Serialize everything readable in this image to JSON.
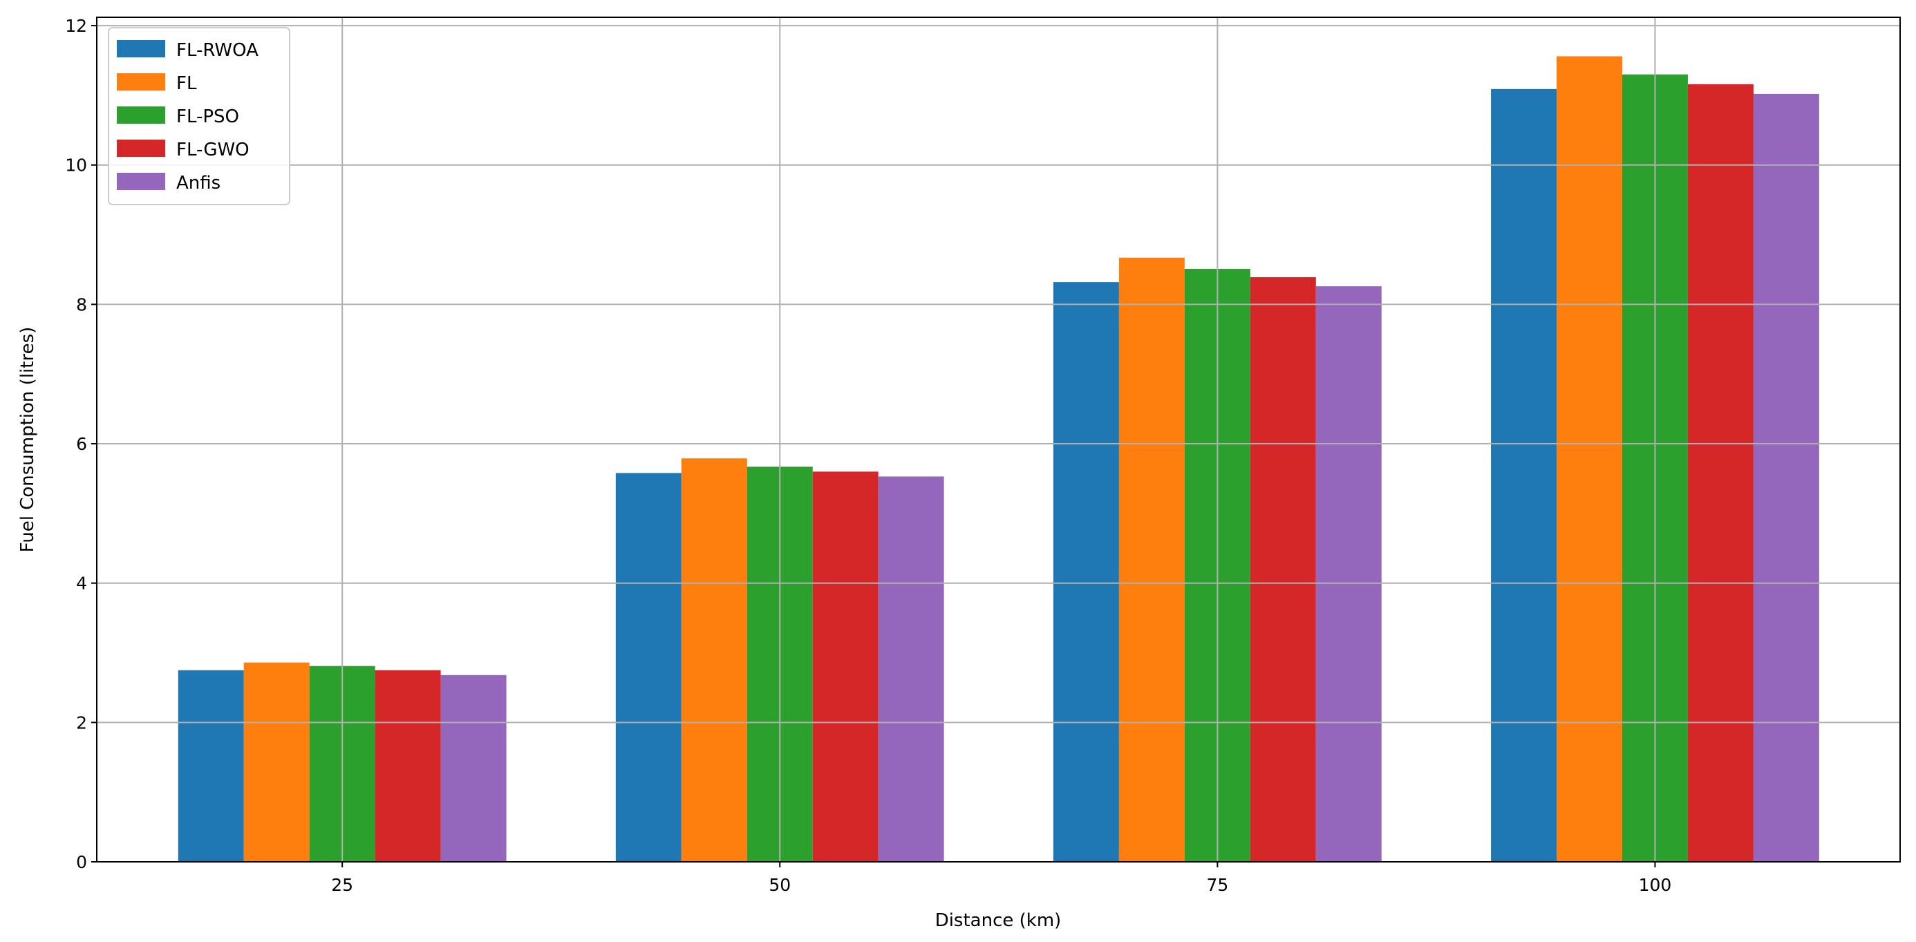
{
  "chart_data": {
    "type": "bar",
    "title": "",
    "xlabel": "Distance (km)",
    "ylabel": "Fuel Consumption (litres)",
    "categories": [
      "25",
      "50",
      "75",
      "100"
    ],
    "ylim": [
      0,
      12.12
    ],
    "yticks": [
      "0",
      "2",
      "4",
      "6",
      "8",
      "10",
      "12"
    ],
    "grid": true,
    "legend_position": "top-left",
    "series": [
      {
        "name": "FL-RWOA",
        "color": "#1f77b4",
        "values": [
          2.75,
          5.58,
          8.32,
          11.09
        ]
      },
      {
        "name": "FL",
        "color": "#ff7f0e",
        "values": [
          2.86,
          5.79,
          8.67,
          11.56
        ]
      },
      {
        "name": "FL-PSO",
        "color": "#2ca02c",
        "values": [
          2.81,
          5.67,
          8.51,
          11.3
        ]
      },
      {
        "name": "FL-GWO",
        "color": "#d62728",
        "values": [
          2.75,
          5.6,
          8.39,
          11.16
        ]
      },
      {
        "name": "Anfis",
        "color": "#9467bd",
        "values": [
          2.68,
          5.53,
          8.26,
          11.02
        ]
      }
    ]
  }
}
